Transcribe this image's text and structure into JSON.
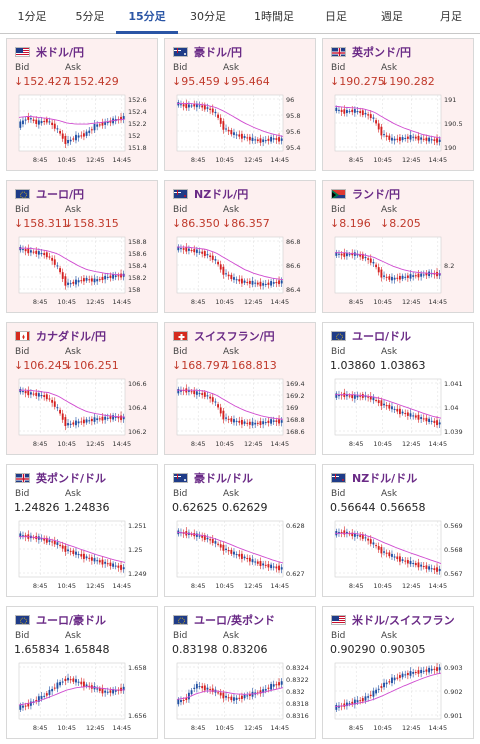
{
  "tabs": [
    {
      "label": "1分足",
      "active": false
    },
    {
      "label": "5分足",
      "active": false
    },
    {
      "label": "15分足",
      "active": true
    },
    {
      "label": "30分足",
      "active": false
    },
    {
      "label": "1時間足",
      "active": false
    },
    {
      "label": "日足",
      "active": false
    },
    {
      "label": "週足",
      "active": false
    },
    {
      "label": "月足",
      "active": false
    }
  ],
  "colors": {
    "up": "#1f4fa3",
    "down": "#d42020",
    "ma": "#d04cd0",
    "down_bg": "#fdf0f0",
    "pair_text": "#6a2a86",
    "active_tab": "#2a55a5"
  },
  "x_ticks": [
    "8:45",
    "10:45",
    "12:45",
    "14:45"
  ],
  "cards": [
    {
      "pair": "米ドル/円",
      "flag": "us",
      "down": true,
      "bid_label": "Bid",
      "ask_label": "Ask",
      "bid": "152.427",
      "ask": "152.429",
      "y_ticks": [
        "152.6",
        "152.4",
        "152.2",
        "152",
        "151.8"
      ],
      "trend": [
        0.45,
        0.6,
        0.5,
        0.55,
        0.4,
        0.15,
        0.25,
        0.3,
        0.45,
        0.5,
        0.55,
        0.6
      ],
      "ma": [
        0.6,
        0.62,
        0.6,
        0.58,
        0.55,
        0.5,
        0.48,
        0.48,
        0.5,
        0.52,
        0.55,
        0.57
      ]
    },
    {
      "pair": "豪ドル/円",
      "flag": "au",
      "down": true,
      "bid_label": "Bid",
      "ask_label": "Ask",
      "bid": "95.459",
      "ask": "95.464",
      "y_ticks": [
        "96",
        "95.8",
        "95.6",
        "95.4"
      ],
      "trend": [
        0.85,
        0.8,
        0.82,
        0.78,
        0.7,
        0.4,
        0.3,
        0.25,
        0.2,
        0.18,
        0.22,
        0.2
      ],
      "ma": [
        0.85,
        0.85,
        0.84,
        0.82,
        0.78,
        0.7,
        0.6,
        0.5,
        0.42,
        0.35,
        0.3,
        0.26
      ]
    },
    {
      "pair": "英ポンド/円",
      "flag": "uk",
      "down": true,
      "bid_label": "Bid",
      "ask_label": "Ask",
      "bid": "190.275",
      "ask": "190.282",
      "y_ticks": [
        "191",
        "190.5",
        "190"
      ],
      "trend": [
        0.75,
        0.7,
        0.72,
        0.68,
        0.6,
        0.3,
        0.2,
        0.22,
        0.25,
        0.22,
        0.2,
        0.18
      ],
      "ma": [
        0.8,
        0.78,
        0.77,
        0.75,
        0.7,
        0.6,
        0.5,
        0.42,
        0.36,
        0.3,
        0.26,
        0.23
      ]
    },
    {
      "pair": "ユーロ/円",
      "flag": "eu",
      "down": true,
      "bid_label": "Bid",
      "ask_label": "Ask",
      "bid": "158.311",
      "ask": "158.315",
      "y_ticks": [
        "158.8",
        "158.6",
        "158.4",
        "158.2",
        "158"
      ],
      "trend": [
        0.8,
        0.75,
        0.72,
        0.68,
        0.5,
        0.15,
        0.2,
        0.25,
        0.22,
        0.28,
        0.3,
        0.32
      ],
      "ma": [
        0.8,
        0.8,
        0.78,
        0.75,
        0.7,
        0.6,
        0.5,
        0.42,
        0.38,
        0.35,
        0.33,
        0.32
      ]
    },
    {
      "pair": "NZドル/円",
      "flag": "nz",
      "down": true,
      "bid_label": "Bid",
      "ask_label": "Ask",
      "bid": "86.350",
      "ask": "86.357",
      "y_ticks": [
        "86.8",
        "86.6",
        "86.4"
      ],
      "trend": [
        0.8,
        0.78,
        0.75,
        0.7,
        0.6,
        0.35,
        0.25,
        0.2,
        0.18,
        0.15,
        0.18,
        0.2
      ],
      "ma": [
        0.82,
        0.82,
        0.8,
        0.78,
        0.72,
        0.62,
        0.52,
        0.42,
        0.35,
        0.3,
        0.26,
        0.24
      ]
    },
    {
      "pair": "ランド/円",
      "flag": "za",
      "down": true,
      "bid_label": "Bid",
      "ask_label": "Ask",
      "bid": "8.196",
      "ask": "8.205",
      "y_ticks": [
        "8.2"
      ],
      "trend": [
        0.7,
        0.68,
        0.7,
        0.65,
        0.55,
        0.3,
        0.25,
        0.28,
        0.3,
        0.32,
        0.35,
        0.33
      ],
      "ma": [
        0.72,
        0.72,
        0.7,
        0.68,
        0.64,
        0.56,
        0.48,
        0.42,
        0.38,
        0.36,
        0.35,
        0.34
      ]
    },
    {
      "pair": "カナダドル/円",
      "flag": "ca",
      "down": true,
      "bid_label": "Bid",
      "ask_label": "Ask",
      "bid": "106.245",
      "ask": "106.251",
      "y_ticks": [
        "106.6",
        "106.4",
        "106.2"
      ],
      "trend": [
        0.8,
        0.75,
        0.72,
        0.68,
        0.5,
        0.18,
        0.22,
        0.25,
        0.28,
        0.3,
        0.32,
        0.3
      ],
      "ma": [
        0.8,
        0.8,
        0.78,
        0.76,
        0.7,
        0.6,
        0.5,
        0.42,
        0.38,
        0.35,
        0.33,
        0.32
      ]
    },
    {
      "pair": "スイスフラン/円",
      "flag": "ch",
      "down": true,
      "bid_label": "Bid",
      "ask_label": "Ask",
      "bid": "168.797",
      "ask": "168.813",
      "y_ticks": [
        "169.4",
        "169.2",
        "169",
        "168.8",
        "168.6"
      ],
      "trend": [
        0.78,
        0.8,
        0.75,
        0.72,
        0.6,
        0.3,
        0.25,
        0.22,
        0.2,
        0.22,
        0.25,
        0.24
      ],
      "ma": [
        0.8,
        0.8,
        0.8,
        0.78,
        0.72,
        0.62,
        0.52,
        0.44,
        0.38,
        0.33,
        0.3,
        0.28
      ]
    },
    {
      "pair": "ユーロ/ドル",
      "flag": "eu",
      "down": false,
      "bid_label": "Bid",
      "ask_label": "Ask",
      "bid": "1.03860",
      "ask": "1.03863",
      "y_ticks": [
        "1.041",
        "1.04",
        "1.039"
      ],
      "trend": [
        0.7,
        0.72,
        0.68,
        0.7,
        0.65,
        0.55,
        0.48,
        0.4,
        0.35,
        0.3,
        0.25,
        0.2
      ],
      "ma": [
        0.72,
        0.72,
        0.72,
        0.7,
        0.68,
        0.64,
        0.58,
        0.52,
        0.46,
        0.4,
        0.34,
        0.3
      ]
    },
    {
      "pair": "英ポンド/ドル",
      "flag": "uk",
      "down": false,
      "bid_label": "Bid",
      "ask_label": "Ask",
      "bid": "1.24826",
      "ask": "1.24836",
      "y_ticks": [
        "1.251",
        "1.25",
        "1.249"
      ],
      "trend": [
        0.75,
        0.72,
        0.7,
        0.65,
        0.6,
        0.48,
        0.42,
        0.35,
        0.3,
        0.25,
        0.2,
        0.15
      ],
      "ma": [
        0.72,
        0.72,
        0.7,
        0.68,
        0.64,
        0.58,
        0.52,
        0.46,
        0.4,
        0.35,
        0.3,
        0.26
      ]
    },
    {
      "pair": "豪ドル/ドル",
      "flag": "au",
      "down": false,
      "bid_label": "Bid",
      "ask_label": "Ask",
      "bid": "0.62625",
      "ask": "0.62629",
      "y_ticks": [
        "0.628",
        "0.627"
      ],
      "trend": [
        0.8,
        0.78,
        0.75,
        0.7,
        0.62,
        0.5,
        0.42,
        0.35,
        0.28,
        0.22,
        0.18,
        0.15
      ],
      "ma": [
        0.8,
        0.78,
        0.76,
        0.73,
        0.68,
        0.62,
        0.55,
        0.48,
        0.42,
        0.36,
        0.3,
        0.25
      ]
    },
    {
      "pair": "NZドル/ドル",
      "flag": "nz",
      "down": false,
      "bid_label": "Bid",
      "ask_label": "Ask",
      "bid": "0.56644",
      "ask": "0.56658",
      "y_ticks": [
        "0.569",
        "0.568",
        "0.567"
      ],
      "trend": [
        0.78,
        0.8,
        0.75,
        0.72,
        0.6,
        0.45,
        0.38,
        0.3,
        0.25,
        0.2,
        0.15,
        0.12
      ],
      "ma": [
        0.78,
        0.78,
        0.78,
        0.75,
        0.7,
        0.62,
        0.55,
        0.48,
        0.42,
        0.36,
        0.3,
        0.24
      ]
    },
    {
      "pair": "ユーロ/豪ドル",
      "flag": "eu",
      "down": false,
      "bid_label": "Bid",
      "ask_label": "Ask",
      "bid": "1.65834",
      "ask": "1.65848",
      "y_ticks": [
        "1.658",
        "1.656"
      ],
      "trend": [
        0.2,
        0.25,
        0.35,
        0.45,
        0.6,
        0.72,
        0.68,
        0.6,
        0.55,
        0.48,
        0.5,
        0.55
      ],
      "ma": [
        0.25,
        0.28,
        0.32,
        0.38,
        0.45,
        0.52,
        0.56,
        0.58,
        0.56,
        0.54,
        0.52,
        0.52
      ]
    },
    {
      "pair": "ユーロ/英ポンド",
      "flag": "eu",
      "down": false,
      "bid_label": "Bid",
      "ask_label": "Ask",
      "bid": "0.83198",
      "ask": "0.83206",
      "y_ticks": [
        "0.8324",
        "0.8322",
        "0.832",
        "0.8318",
        "0.8316"
      ],
      "trend": [
        0.3,
        0.35,
        0.6,
        0.55,
        0.5,
        0.4,
        0.35,
        0.4,
        0.45,
        0.5,
        0.6,
        0.65
      ],
      "ma": [
        0.35,
        0.38,
        0.45,
        0.5,
        0.5,
        0.48,
        0.45,
        0.44,
        0.45,
        0.48,
        0.52,
        0.56
      ]
    },
    {
      "pair": "米ドル/スイスフラン",
      "flag": "us",
      "down": false,
      "bid_label": "Bid",
      "ask_label": "Ask",
      "bid": "0.90290",
      "ask": "0.90305",
      "y_ticks": [
        "0.903",
        "0.902",
        "0.901"
      ],
      "trend": [
        0.2,
        0.25,
        0.3,
        0.35,
        0.45,
        0.6,
        0.7,
        0.78,
        0.82,
        0.85,
        0.88,
        0.9
      ],
      "ma": [
        0.22,
        0.24,
        0.27,
        0.3,
        0.35,
        0.42,
        0.5,
        0.58,
        0.65,
        0.72,
        0.78,
        0.82
      ]
    }
  ]
}
